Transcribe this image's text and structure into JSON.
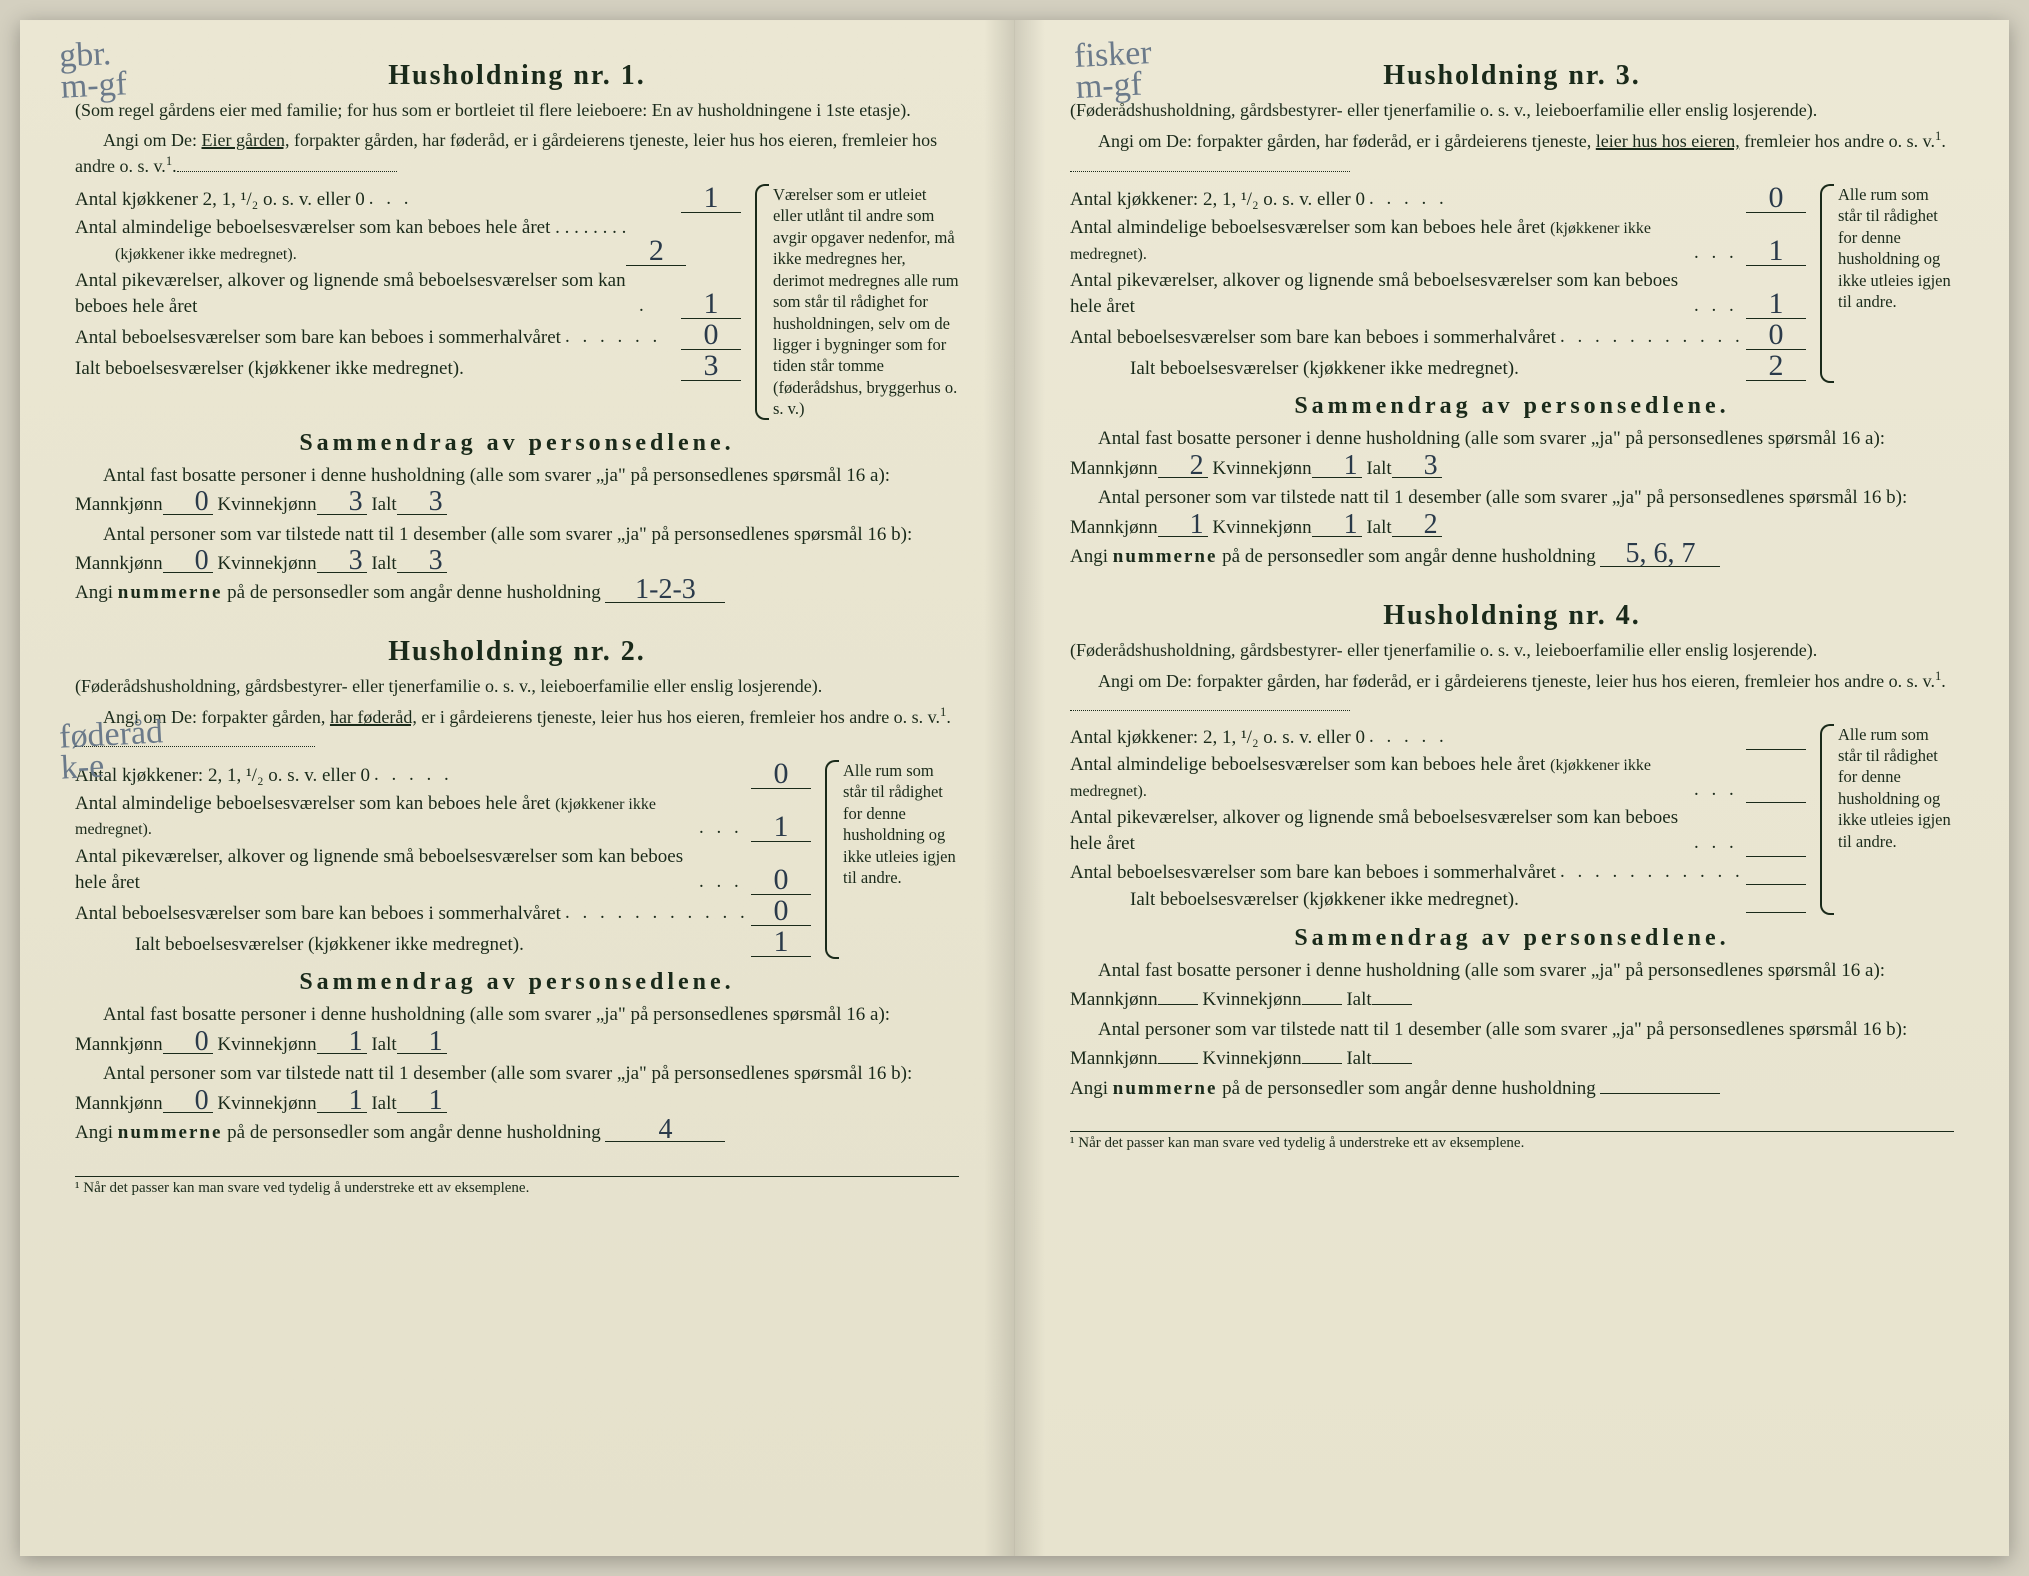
{
  "left": {
    "annotation1": "gbr.\nm-gf",
    "annotation2": "føderåd\nk-e",
    "h1": {
      "title": "Husholdning nr. 1.",
      "sub1": "(Som regel gårdens eier med familie; for hus som er bortleiet til flere leieboere: En av husholdningene i 1ste etasje).",
      "sub2a": "Angi om De: ",
      "sub2_under": "Eier gården,",
      "sub2b": " forpakter gården, har føderåd, er i gårdeierens tjeneste, leier hus hos eieren, fremleier hos andre o. s. v.",
      "rows": [
        {
          "label": "Antal kjøkkener 2, 1, ¹/₂ o. s. v. eller 0",
          "val": "1"
        },
        {
          "label": "Antal almindelige beboelsesværelser som kan beboes hele året",
          "sublabel": "(kjøkkener ikke medregnet).",
          "val": "2"
        },
        {
          "label": "Antal pikeværelser, alkover og lignende små beboelsesværelser som kan beboes hele året",
          "val": "1"
        },
        {
          "label": "Antal beboelsesværelser som bare kan beboes i sommerhalvåret",
          "val": "0"
        },
        {
          "label": "Ialt beboelsesværelser (kjøkkener ikke medregnet).",
          "val": "3"
        }
      ],
      "sidenote": "Værelser som er utleiet eller utlånt til andre som avgir opgaver nedenfor, må ikke medregnes her, derimot medregnes alle rum som står til rådighet for husholdningen, selv om de ligger i bygninger som for tiden står tomme (føderådshus, bryggerhus o. s. v.)",
      "sammen": {
        "title": "Sammendrag av personsedlene.",
        "p1a": "Antal fast bosatte personer i denne husholdning (alle som svarer „ja\" på personsedlenes spørsmål 16 a): Mannkjønn",
        "m1": "0",
        "k1": "3",
        "i1": "3",
        "p2a": "Antal personer som var tilstede natt til 1 desember (alle som svarer „ja\" på personsedlenes spørsmål 16 b): Mannkjønn",
        "m2": "0",
        "k2": "3",
        "i2": "3",
        "p3": "Angi ",
        "p3b": "nummerne",
        "p3c": " på de personsedler som angår denne husholdning",
        "nums": "1-2-3"
      }
    },
    "h2": {
      "title": "Husholdning nr. 2.",
      "sub1": "(Føderådshusholdning, gårdsbestyrer- eller tjenerfamilie o. s. v., leieboerfamilie eller enslig losjerende).",
      "sub2a": "Angi om De: forpakter gården, ",
      "sub2_under": "har føderåd,",
      "sub2b": " er i gårdeierens tjeneste, leier hus hos eieren, fremleier hos andre o. s. v.",
      "rows": [
        {
          "label": "Antal kjøkkener: 2, 1, ¹/₂ o. s. v. eller 0",
          "val": "0"
        },
        {
          "label": "Antal almindelige beboelsesværelser som kan beboes hele året",
          "sublabel": "(kjøkkener ikke medregnet).",
          "val": "1"
        },
        {
          "label": "Antal pikeværelser, alkover og lignende små beboelsesværelser som kan beboes hele året",
          "val": "0"
        },
        {
          "label": "Antal beboelsesværelser som bare kan beboes i sommerhalvåret",
          "val": "0"
        },
        {
          "label": "Ialt beboelsesværelser (kjøkkener ikke medregnet).",
          "val": "1"
        }
      ],
      "sidenote": "Alle rum som står til rådighet for denne husholdning og ikke utleies igjen til andre.",
      "sammen": {
        "title": "Sammendrag av personsedlene.",
        "p1a": "Antal fast bosatte personer i denne husholdning (alle som svarer „ja\" på personsedlenes spørsmål 16 a): Mannkjønn",
        "m1": "0",
        "k1": "1",
        "i1": "1",
        "p2a": "Antal personer som var tilstede natt til 1 desember (alle som svarer „ja\" på personsedlenes spørsmål 16 b): Mannkjønn",
        "m2": "0",
        "k2": "1",
        "i2": "1",
        "p3": "Angi ",
        "p3b": "nummerne",
        "p3c": " på de personsedler som angår denne husholdning",
        "nums": "4"
      }
    },
    "footnote": "¹  Når det passer kan man svare ved tydelig å understreke ett av eksemplene."
  },
  "right": {
    "annotation1": "fisker\nm-gf",
    "h3": {
      "title": "Husholdning nr. 3.",
      "sub1": "(Føderådshusholdning, gårdsbestyrer- eller tjenerfamilie o. s. v., leieboerfamilie eller enslig losjerende).",
      "sub2a": "Angi om De: forpakter gården, har føderåd, er i gårdeierens tjeneste, ",
      "sub2_under": "leier hus hos eieren,",
      "sub2b": " fremleier hos andre o. s. v.",
      "rows": [
        {
          "label": "Antal kjøkkener: 2, 1, ¹/₂ o. s. v. eller 0",
          "val": "0"
        },
        {
          "label": "Antal almindelige beboelsesværelser som kan beboes hele året",
          "sublabel": "(kjøkkener ikke medregnet).",
          "val": "1"
        },
        {
          "label": "Antal pikeværelser, alkover og lignende små beboelsesværelser som kan beboes hele året",
          "val": "1"
        },
        {
          "label": "Antal beboelsesværelser som bare kan beboes i sommerhalvåret",
          "val": "0"
        },
        {
          "label": "Ialt beboelsesværelser (kjøkkener ikke medregnet).",
          "val": "2"
        }
      ],
      "sidenote": "Alle rum som står til rådighet for denne husholdning og ikke utleies igjen til andre.",
      "sammen": {
        "title": "Sammendrag av personsedlene.",
        "p1a": "Antal fast bosatte personer i denne husholdning (alle som svarer „ja\" på personsedlenes spørsmål 16 a): Mannkjønn",
        "m1": "2",
        "k1": "1",
        "i1": "3",
        "p2a": "Antal personer som var tilstede natt til 1 desember (alle som svarer „ja\" på personsedlenes spørsmål 16 b): Mannkjønn",
        "m2": "1",
        "k2": "1",
        "i2": "2",
        "p3": "Angi ",
        "p3b": "nummerne",
        "p3c": " på de personsedler som angår denne husholdning",
        "nums": "5, 6, 7"
      }
    },
    "h4": {
      "title": "Husholdning nr. 4.",
      "sub1": "(Føderådshusholdning, gårdsbestyrer- eller tjenerfamilie o. s. v., leieboerfamilie eller enslig losjerende).",
      "sub2a": "Angi om De: forpakter gården, har føderåd, er i gårdeierens tjeneste, leier hus hos eieren, fremleier hos andre o. s. v.",
      "sub2_under": "",
      "sub2b": "",
      "rows": [
        {
          "label": "Antal kjøkkener: 2, 1, ¹/₂ o. s. v. eller 0",
          "val": ""
        },
        {
          "label": "Antal almindelige beboelsesværelser som kan beboes hele året",
          "sublabel": "(kjøkkener ikke medregnet).",
          "val": ""
        },
        {
          "label": "Antal pikeværelser, alkover og lignende små beboelsesværelser som kan beboes hele året",
          "val": ""
        },
        {
          "label": "Antal beboelsesværelser som bare kan beboes i sommerhalvåret",
          "val": ""
        },
        {
          "label": "Ialt beboelsesværelser (kjøkkener ikke medregnet).",
          "val": ""
        }
      ],
      "sidenote": "Alle rum som står til rådighet for denne husholdning og ikke utleies igjen til andre.",
      "sammen": {
        "title": "Sammendrag av personsedlene.",
        "p1a": "Antal fast bosatte personer i denne husholdning (alle som svarer „ja\" på personsedlenes spørsmål 16 a): Mannkjønn",
        "m1": "",
        "k1": "",
        "i1": "",
        "p2a": "Antal personer som var tilstede natt til 1 desember (alle som svarer „ja\" på personsedlenes spørsmål 16 b): Mannkjønn",
        "m2": "",
        "k2": "",
        "i2": "",
        "p3": "Angi ",
        "p3b": "nummerne",
        "p3c": " på de personsedler som angår denne husholdning",
        "nums": ""
      }
    },
    "footnote": "¹  Når det passer kan man svare ved tydelig å understreke ett av eksemplene."
  },
  "labels": {
    "kvinne": " Kvinnekjønn",
    "ialt": " Ialt"
  },
  "style": {
    "paper_bg": "#e8e4d0",
    "text_color": "#1a2a1a",
    "hand_color": "#2a3a4a",
    "annotation_color": "#6b7a8a",
    "title_fontsize": 28,
    "body_fontsize": 19,
    "sidenote_fontsize": 16.5,
    "footnote_fontsize": 15
  }
}
